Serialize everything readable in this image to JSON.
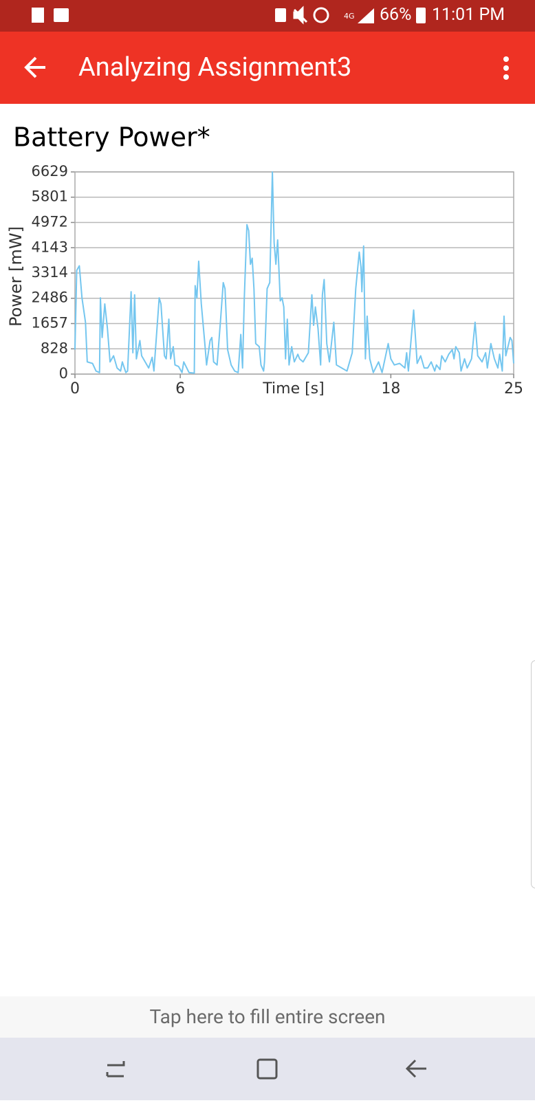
{
  "status_bar": {
    "battery": "66%",
    "time": "11:01 PM"
  },
  "app_bar": {
    "title": "Analyzing Assignment3"
  },
  "chart_data": {
    "type": "line",
    "title": "Battery Power*",
    "x_label": "Time [s]",
    "y_label": "Power [mW]",
    "xlim": [
      0,
      25
    ],
    "xticks": [
      0,
      6,
      18,
      25
    ],
    "ylim": [
      0,
      6629
    ],
    "yticks": [
      0,
      828,
      1657,
      2486,
      3314,
      4143,
      4972,
      5801,
      6629
    ],
    "grid": true,
    "x": [
      0,
      0.1,
      0.25,
      0.4,
      0.6,
      0.7,
      1.0,
      1.2,
      1.4,
      1.45,
      1.55,
      1.7,
      1.85,
      2.0,
      2.2,
      2.4,
      2.6,
      2.7,
      2.9,
      3.0,
      3.2,
      3.3,
      3.4,
      3.5,
      3.7,
      3.8,
      4.0,
      4.2,
      4.4,
      4.5,
      4.8,
      4.9,
      5.1,
      5.2,
      5.35,
      5.45,
      5.6,
      5.7,
      5.9,
      6.1,
      6.2,
      6.5,
      6.8,
      6.85,
      6.95,
      7.05,
      7.2,
      7.4,
      7.5,
      7.7,
      7.8,
      7.9,
      8.1,
      8.3,
      8.45,
      8.55,
      8.7,
      8.9,
      9.1,
      9.3,
      9.45,
      9.55,
      9.65,
      9.8,
      9.9,
      10.0,
      10.1,
      10.2,
      10.3,
      10.5,
      10.6,
      10.75,
      10.8,
      10.95,
      11.1,
      11.25,
      11.35,
      11.45,
      11.55,
      11.7,
      11.8,
      11.9,
      12.0,
      12.1,
      12.2,
      12.35,
      12.5,
      12.7,
      12.8,
      13.0,
      13.3,
      13.5,
      13.6,
      13.7,
      13.85,
      14.0,
      14.1,
      14.2,
      14.35,
      14.5,
      14.75,
      14.9,
      15.2,
      15.5,
      15.8,
      16.0,
      16.2,
      16.3,
      16.35,
      16.45,
      16.55,
      16.65,
      16.8,
      17.0,
      17.3,
      17.5,
      17.85,
      18.0,
      18.2,
      18.5,
      18.8,
      18.9,
      19.0,
      19.3,
      19.5,
      19.7,
      19.9,
      20.1,
      20.3,
      20.5,
      20.6,
      20.8,
      20.9,
      21.1,
      21.3,
      21.5,
      21.6,
      21.7,
      21.9,
      22.0,
      22.2,
      22.35,
      22.6,
      22.8,
      22.95,
      23.2,
      23.4,
      23.5,
      23.7,
      23.9,
      24.1,
      24.2,
      24.35,
      24.45,
      24.55,
      24.8,
      24.9,
      25.0
    ],
    "series": [
      {
        "color": "#74c6ef",
        "values": [
          800,
          3400,
          3550,
          2500,
          1700,
          400,
          350,
          100,
          50,
          2500,
          1200,
          2300,
          1500,
          400,
          600,
          200,
          100,
          400,
          50,
          100,
          2700,
          700,
          2600,
          500,
          1100,
          600,
          400,
          200,
          550,
          100,
          2500,
          2300,
          600,
          500,
          1800,
          500,
          900,
          300,
          250,
          50,
          400,
          50,
          30,
          2900,
          2500,
          3700,
          2300,
          1000,
          300,
          1100,
          1200,
          400,
          300,
          1800,
          3000,
          2800,
          800,
          300,
          100,
          50,
          1300,
          200,
          2500,
          4900,
          4700,
          3600,
          3800,
          2800,
          1000,
          900,
          300,
          100,
          400,
          2800,
          3000,
          6629,
          4300,
          3600,
          4400,
          2400,
          2500,
          2200,
          500,
          1800,
          300,
          900,
          400,
          650,
          500,
          400,
          700,
          2600,
          1600,
          2200,
          1500,
          300,
          2600,
          3100,
          1000,
          400,
          1700,
          300,
          200,
          100,
          700,
          2800,
          4000,
          3500,
          2700,
          4200,
          500,
          1900,
          500,
          50,
          400,
          50,
          1000,
          500,
          300,
          350,
          200,
          700,
          100,
          2100,
          350,
          600,
          200,
          200,
          400,
          100,
          300,
          150,
          600,
          400,
          650,
          800,
          500,
          900,
          700,
          100,
          500,
          200,
          500,
          1700,
          600,
          400,
          700,
          200,
          1000,
          500,
          200,
          650,
          100,
          1900,
          600,
          1200,
          1100,
          350
        ]
      }
    ]
  },
  "footer": {
    "fill_button": "Tap here to fill entire screen"
  }
}
